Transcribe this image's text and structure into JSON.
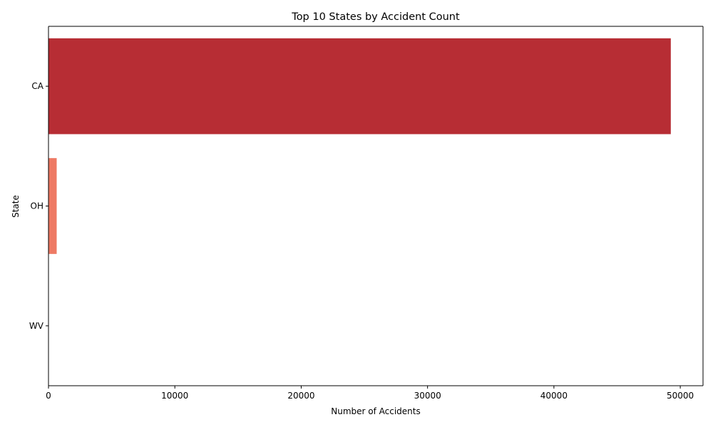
{
  "chart_data": {
    "type": "bar",
    "orientation": "horizontal",
    "title": "Top 10 States by Accident Count",
    "xlabel": "Number of Accidents",
    "ylabel": "State",
    "categories": [
      "CA",
      "OH",
      "WV"
    ],
    "values": [
      49250,
      650,
      5
    ],
    "colors": [
      "#b72d34",
      "#ee7a64",
      "#fdd8c4"
    ],
    "xlim": [
      0,
      51800
    ],
    "xticks": [
      0,
      10000,
      20000,
      30000,
      40000,
      50000
    ],
    "xtick_labels": [
      "0",
      "10000",
      "20000",
      "30000",
      "40000",
      "50000"
    ],
    "grid": false,
    "legend": "none"
  }
}
